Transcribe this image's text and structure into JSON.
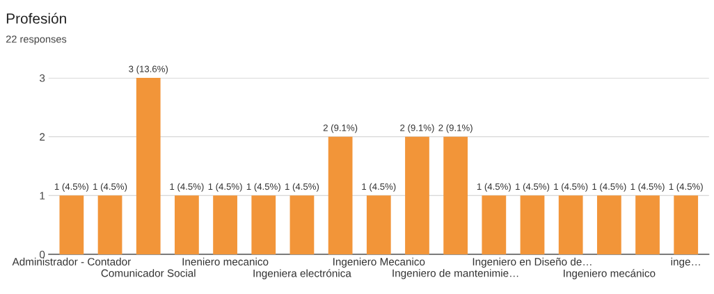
{
  "chart_data": {
    "type": "bar",
    "title": "Profesión",
    "subtitle": "22 responses",
    "categories": [
      "Administrador - Contador",
      null,
      "Comunicador Social",
      null,
      "Ineniero mecanico",
      null,
      "Ingeniera electrónica",
      null,
      "Ingeniero Mecanico",
      null,
      "Ingeniero de mantenimie…",
      null,
      "Ingeniero en Diseño de…",
      null,
      "Ingeniero mecánico",
      null,
      "inge…"
    ],
    "values": [
      1,
      1,
      3,
      1,
      1,
      1,
      1,
      2,
      1,
      2,
      2,
      1,
      1,
      1,
      1,
      1,
      1
    ],
    "value_labels": [
      "1 (4.5%)",
      "1 (4.5%)",
      "3 (13.6%)",
      "1 (4.5%)",
      "1 (4.5%)",
      "1 (4.5%)",
      "1 (4.5%)",
      "2 (9.1%)",
      "1 (4.5%)",
      "2 (9.1%)",
      "2 (9.1%)",
      "1 (4.5%)",
      "1 (4.5%)",
      "1 (4.5%)",
      "1 (4.5%)",
      "1 (4.5%)",
      "1 (4.5%)"
    ],
    "color": "#f29539",
    "ylim": [
      0,
      3
    ],
    "yticks": [
      0,
      1,
      2,
      3
    ],
    "grid": "y"
  }
}
